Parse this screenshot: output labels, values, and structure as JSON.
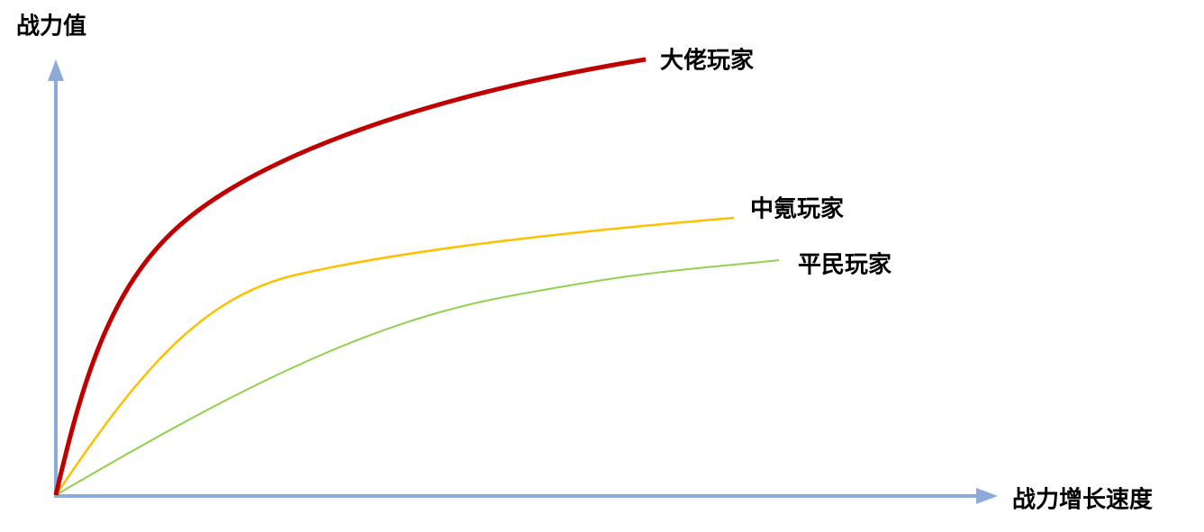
{
  "axes": {
    "y_label": "战力值",
    "x_label": "战力增长速度"
  },
  "curves": [
    {
      "label": "大佬玩家"
    },
    {
      "label": "中氪玩家"
    },
    {
      "label": "平民玩家"
    }
  ]
}
